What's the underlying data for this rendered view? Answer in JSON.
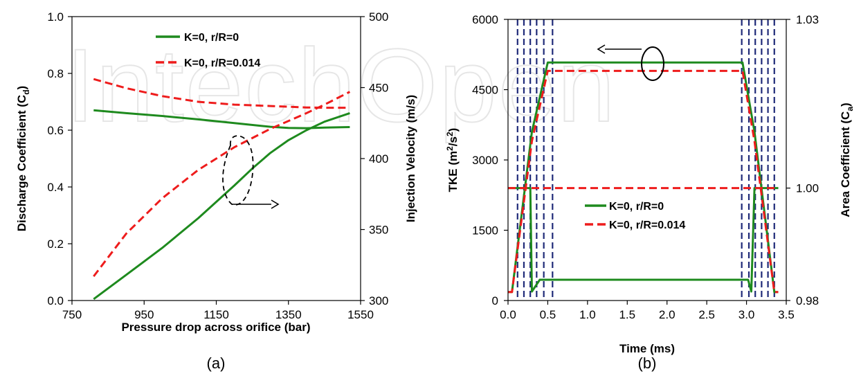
{
  "colors": {
    "green": "#1e8a1e",
    "red": "#ee1c1c",
    "navy": "#1f2a78",
    "axis": "#000000"
  },
  "watermark": "IntechOpen",
  "chart_data": [
    {
      "type": "line",
      "caption": "(a)",
      "xlabel": "Pressure drop across orifice (bar)",
      "ylabel": "Discharge Coefficient (C",
      "ylabel_sub": "d",
      "ylabel_end": ")",
      "y2label": "Injection Velocity (m/s)",
      "xlim": [
        750,
        1550
      ],
      "ylim": [
        0.0,
        1.0
      ],
      "y2lim": [
        300,
        500
      ],
      "x_ticks": [
        "750",
        "950",
        "1150",
        "1350",
        "1550"
      ],
      "y_ticks": [
        "0.0",
        "0.2",
        "0.4",
        "0.6",
        "0.8",
        "1.0"
      ],
      "y2_ticks": [
        "300",
        "350",
        "400",
        "450",
        "500"
      ],
      "legend": [
        "K=0, r/R=0",
        "K=0, r/R=0.014"
      ],
      "series": [
        {
          "name": "K=0, r/R=0",
          "axis": "left",
          "style": "solid",
          "x": [
            810,
            900,
            1000,
            1100,
            1200,
            1300,
            1350,
            1400,
            1450,
            1520
          ],
          "y": [
            0.67,
            0.66,
            0.65,
            0.638,
            0.625,
            0.612,
            0.608,
            0.607,
            0.609,
            0.611
          ]
        },
        {
          "name": "K=0, r/R=0.014",
          "axis": "left",
          "style": "dashed",
          "x": [
            810,
            900,
            1000,
            1100,
            1200,
            1300,
            1400,
            1450,
            1520
          ],
          "y": [
            0.78,
            0.748,
            0.72,
            0.7,
            0.69,
            0.685,
            0.68,
            0.679,
            0.679
          ]
        },
        {
          "name": "K=0, r/R=0",
          "axis": "right",
          "style": "solid",
          "x": [
            810,
            900,
            1000,
            1100,
            1200,
            1250,
            1300,
            1350,
            1400,
            1450,
            1520
          ],
          "y": [
            301,
            318,
            337,
            358,
            381,
            393,
            404,
            413,
            420,
            426,
            432
          ]
        },
        {
          "name": "K=0, r/R=0.014",
          "axis": "right",
          "style": "dashed",
          "x": [
            810,
            900,
            1000,
            1100,
            1200,
            1300,
            1400,
            1450,
            1520
          ],
          "y": [
            317,
            347,
            372,
            392,
            408,
            421,
            432,
            438,
            447
          ]
        }
      ]
    },
    {
      "type": "line",
      "caption": "(b)",
      "xlabel": "Time (ms)",
      "ylabel": "TKE (m",
      "ylabel_sup1": "2",
      "ylabel_mid": "/s",
      "ylabel_sup2": "2",
      "ylabel_end": ")",
      "y2label": "Area Coefficient (C",
      "y2label_sub": "a",
      "y2label_end": ")",
      "xlim": [
        0.0,
        3.5
      ],
      "ylim": [
        0,
        6000
      ],
      "y2lim": [
        0.98,
        1.03
      ],
      "x_ticks": [
        "0.0",
        "0.5",
        "1.0",
        "1.5",
        "2.0",
        "2.5",
        "3.0",
        "3.5"
      ],
      "y_ticks": [
        "0",
        "1500",
        "3000",
        "4500",
        "6000"
      ],
      "y2_ticks": [
        "0.98",
        "1.00",
        "1.03"
      ],
      "y2_tick_values": [
        0.98,
        1.0,
        1.03
      ],
      "vlines": [
        0.12,
        0.2,
        0.28,
        0.36,
        0.45,
        0.56,
        2.94,
        3.03,
        3.11,
        3.19,
        3.27,
        3.35
      ],
      "legend": [
        "K=0, r/R=0",
        "K=0, r/R=0.014"
      ],
      "series": [
        {
          "name": "K=0, r/R=0",
          "axis": "left",
          "style": "solid",
          "x": [
            0.0,
            0.05,
            0.3,
            0.5,
            2.95,
            3.1,
            3.35,
            3.4
          ],
          "y": [
            180,
            180,
            3600,
            5080,
            5080,
            3600,
            180,
            180
          ]
        },
        {
          "name": "K=0, r/R=0.014",
          "axis": "left",
          "style": "dashed",
          "x": [
            0.0,
            0.05,
            0.3,
            0.5,
            2.95,
            3.1,
            3.35,
            3.4
          ],
          "y": [
            180,
            180,
            3400,
            4900,
            4900,
            3400,
            180,
            180
          ]
        },
        {
          "name": "K=0, r/R=0",
          "axis": "right",
          "style": "solid",
          "x": [
            0.0,
            0.15,
            0.23,
            0.28,
            0.3,
            0.4,
            2.95,
            3.02,
            3.06,
            3.1,
            3.17,
            3.22,
            3.3,
            3.4
          ],
          "y": [
            1.0,
            1.0,
            1.0,
            1.0,
            0.9816,
            0.9837,
            0.9837,
            0.9837,
            0.9816,
            1.0,
            1.0,
            1.0,
            1.0,
            1.0
          ]
        },
        {
          "name": "K=0, r/R=0.014",
          "axis": "right",
          "style": "dashed",
          "x": [
            0.0,
            3.4
          ],
          "y": [
            1.0,
            1.0
          ]
        }
      ]
    }
  ]
}
